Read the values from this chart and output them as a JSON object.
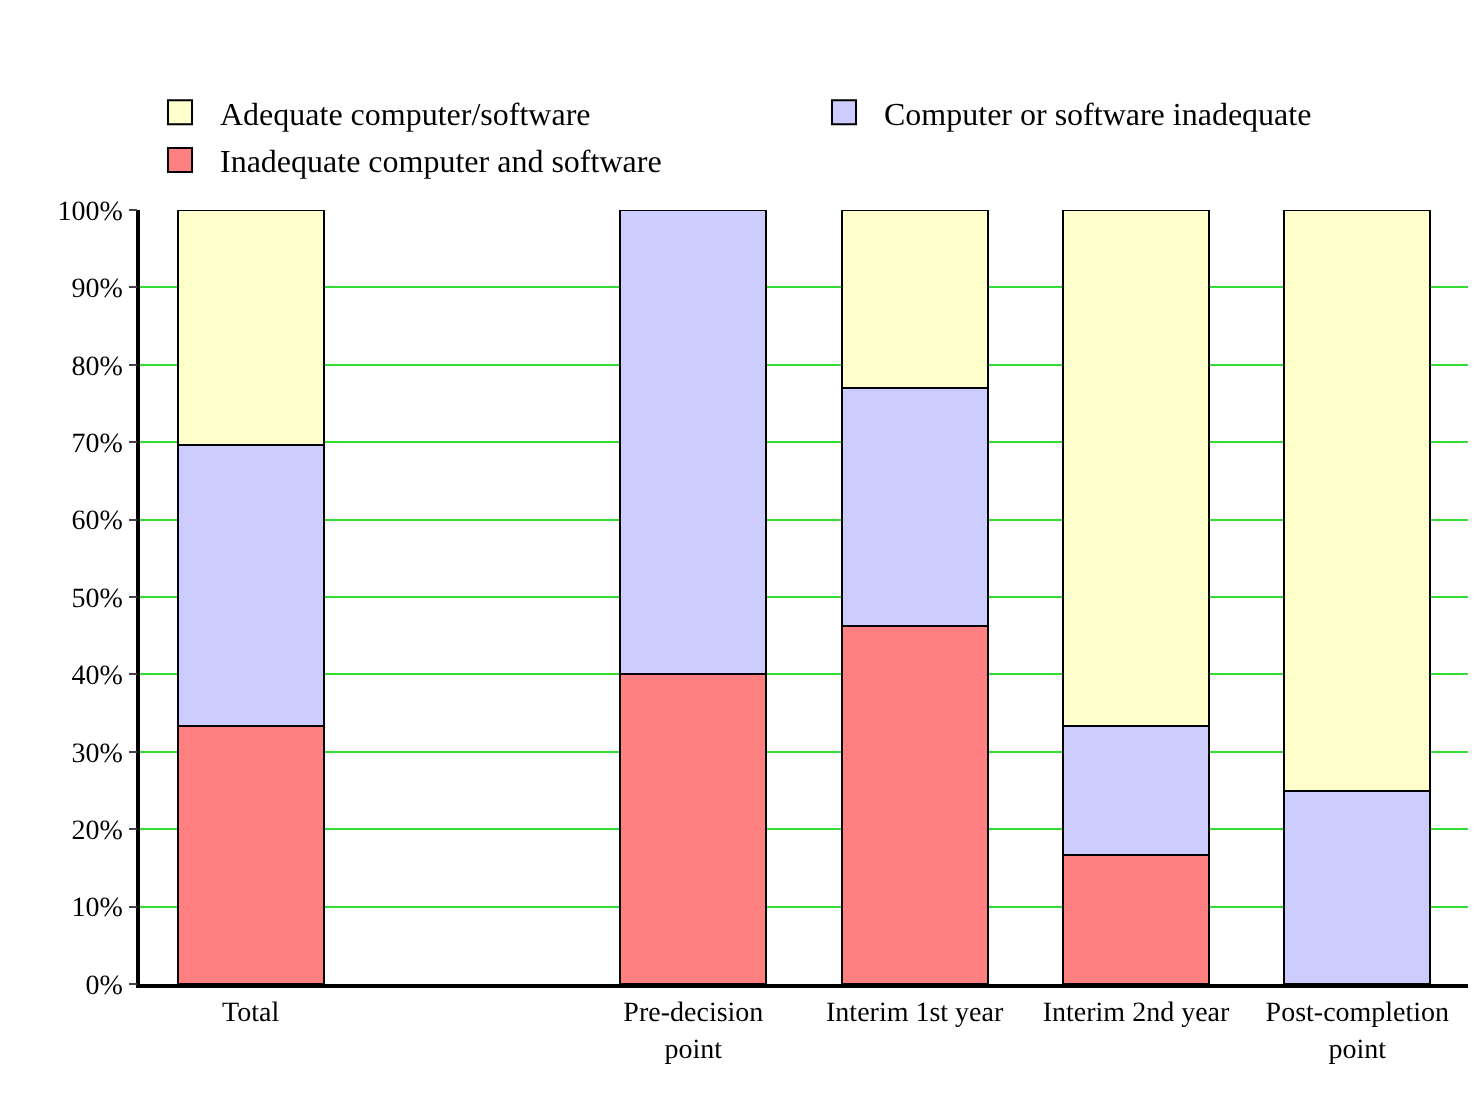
{
  "chart_data": {
    "type": "bar",
    "stacked": true,
    "categories": [
      "Total",
      null,
      "Pre-decision point",
      "Interim 1st year",
      "Interim 2nd year",
      "Post-completion point"
    ],
    "series": [
      {
        "name": "Inadequate computer and software",
        "color": "#ff8080",
        "values": [
          33.3,
          null,
          40,
          46.2,
          16.7,
          null
        ]
      },
      {
        "name": "Computer or software inadequate",
        "color": "#ccccff",
        "values": [
          36.4,
          null,
          60,
          30.8,
          16.6,
          25
        ]
      },
      {
        "name": "Adequate computer/software",
        "color": "#ffffcc",
        "values": [
          30.3,
          null,
          null,
          23,
          66.7,
          75
        ]
      }
    ],
    "ylim": [
      0,
      100
    ],
    "yticks": [
      {
        "value": 0,
        "label": "0%"
      },
      {
        "value": 10,
        "label": "10%"
      },
      {
        "value": 20,
        "label": "20%"
      },
      {
        "value": 30,
        "label": "30%"
      },
      {
        "value": 40,
        "label": "40%"
      },
      {
        "value": 50,
        "label": "50%"
      },
      {
        "value": 60,
        "label": "60%"
      },
      {
        "value": 70,
        "label": "70%"
      },
      {
        "value": 80,
        "label": "80%"
      },
      {
        "value": 90,
        "label": "90%"
      },
      {
        "value": 100,
        "label": "100%"
      }
    ],
    "grid": "y",
    "legend": "top"
  }
}
